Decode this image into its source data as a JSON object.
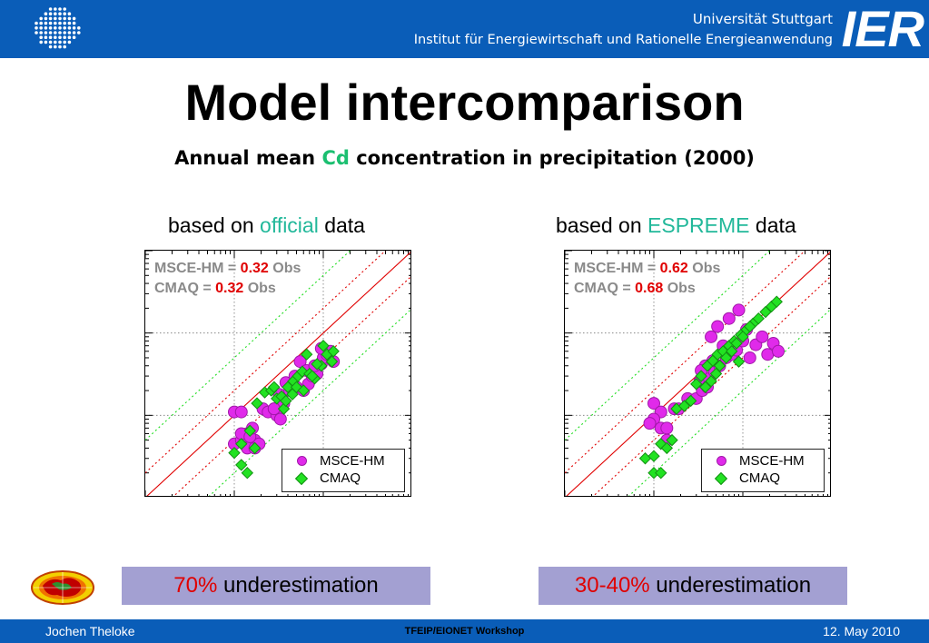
{
  "header": {
    "university": "Universität Stuttgart",
    "institute": "Institut für Energiewirtschaft und Rationelle Energieanwendung",
    "logo_text": "IER",
    "colors": {
      "bar": "#0a5db8"
    }
  },
  "slide": {
    "title": "Model intercomparison",
    "subtitle": {
      "pre": "Annual mean ",
      "highlight": "Cd",
      "post": " concentration in precipitation (2000)"
    }
  },
  "panels": [
    {
      "label": {
        "pre": "based on ",
        "highlight": "official",
        "post": " data"
      },
      "stats": [
        {
          "name": "MSCE-HM = ",
          "value": "0.32",
          "suffix": " Obs"
        },
        {
          "name": "CMAQ = ",
          "value": "0.32",
          "suffix": " Obs"
        }
      ],
      "conclusion": {
        "highlight": "70%",
        "text": " underestimation"
      }
    },
    {
      "label": {
        "pre": "based on ",
        "highlight": "ESPREME",
        "post": " data"
      },
      "stats": [
        {
          "name": "MSCE-HM = ",
          "value": "0.62",
          "suffix": " Obs"
        },
        {
          "name": "CMAQ = ",
          "value": "0.68",
          "suffix": " Obs"
        }
      ],
      "conclusion": {
        "highlight": "30-40%",
        "text": " underestimation"
      }
    }
  ],
  "legend": {
    "msce": "MSCE-HM",
    "cmaq": "CMAQ"
  },
  "footer": {
    "author": "Jochen Theloke",
    "event": "TFEIP/EIONET Workshop",
    "date": "12. May 2010"
  },
  "chart_data": [
    {
      "type": "scatter",
      "title": "",
      "xlabel": "",
      "ylabel": "",
      "scale": "log-log",
      "grid": true,
      "legend_position": "bottom-right",
      "xlim": [
        0.01,
        10
      ],
      "ylim": [
        0.01,
        10
      ],
      "reference_lines": [
        {
          "kind": "1:1",
          "color": "#e00000",
          "style": "solid"
        },
        {
          "kind": "factor 2",
          "color": "#e00000",
          "style": "dotted"
        },
        {
          "kind": "factor 5",
          "color": "#22dd22",
          "style": "dotted"
        }
      ],
      "series": [
        {
          "name": "MSCE-HM",
          "color": "#e02aea",
          "marker": "circle",
          "x": [
            0.1,
            0.12,
            0.14,
            0.17,
            0.1,
            0.12,
            0.14,
            0.17,
            0.19,
            0.12,
            0.15,
            0.16,
            0.21,
            0.24,
            0.28,
            0.32,
            0.36,
            0.3,
            0.42,
            0.33,
            0.45,
            0.5,
            0.6,
            0.68,
            0.75,
            0.85,
            0.95,
            0.55,
            0.65,
            0.8,
            1.0,
            1.1,
            1.2,
            1.3,
            0.95,
            0.28,
            0.38,
            0.48
          ],
          "y": [
            0.11,
            0.11,
            0.06,
            0.05,
            0.045,
            0.05,
            0.04,
            0.04,
            0.045,
            0.06,
            0.055,
            0.07,
            0.12,
            0.11,
            0.12,
            0.18,
            0.14,
            0.1,
            0.2,
            0.09,
            0.24,
            0.22,
            0.2,
            0.24,
            0.3,
            0.32,
            0.42,
            0.45,
            0.35,
            0.4,
            0.5,
            0.55,
            0.6,
            0.45,
            0.65,
            0.12,
            0.25,
            0.3
          ]
        },
        {
          "name": "CMAQ",
          "color": "#22e222",
          "marker": "diamond",
          "x": [
            0.1,
            0.12,
            0.14,
            0.17,
            0.12,
            0.15,
            0.18,
            0.22,
            0.26,
            0.3,
            0.36,
            0.34,
            0.4,
            0.46,
            0.52,
            0.58,
            0.7,
            0.8,
            0.95,
            1.1,
            1.3,
            0.65,
            0.75,
            0.85,
            1.0,
            1.25,
            0.45,
            0.5,
            0.38,
            0.28,
            0.6
          ],
          "y": [
            0.035,
            0.025,
            0.02,
            0.04,
            0.045,
            0.065,
            0.14,
            0.19,
            0.2,
            0.16,
            0.12,
            0.17,
            0.22,
            0.26,
            0.3,
            0.34,
            0.32,
            0.28,
            0.4,
            0.55,
            0.6,
            0.55,
            0.3,
            0.42,
            0.7,
            0.45,
            0.18,
            0.22,
            0.15,
            0.22,
            0.2
          ]
        }
      ]
    },
    {
      "type": "scatter",
      "title": "",
      "xlabel": "",
      "ylabel": "",
      "scale": "log-log",
      "grid": true,
      "legend_position": "bottom-right",
      "xlim": [
        0.01,
        10
      ],
      "ylim": [
        0.01,
        10
      ],
      "reference_lines": [
        {
          "kind": "1:1",
          "color": "#e00000",
          "style": "solid"
        },
        {
          "kind": "factor 2",
          "color": "#e00000",
          "style": "dotted"
        },
        {
          "kind": "factor 5",
          "color": "#22dd22",
          "style": "dotted"
        }
      ],
      "series": [
        {
          "name": "MSCE-HM",
          "color": "#e02aea",
          "marker": "circle",
          "x": [
            0.1,
            0.12,
            0.1,
            0.12,
            0.14,
            0.14,
            0.09,
            0.17,
            0.19,
            0.24,
            0.3,
            0.35,
            0.33,
            0.42,
            0.48,
            0.4,
            0.55,
            0.65,
            0.75,
            0.6,
            0.85,
            1.0,
            1.2,
            1.4,
            1.65,
            1.9,
            2.2,
            2.5,
            0.38,
            0.44,
            0.52,
            0.7,
            0.9,
            1.1,
            0.34,
            0.46
          ],
          "y": [
            0.14,
            0.11,
            0.09,
            0.07,
            0.07,
            0.05,
            0.08,
            0.12,
            0.12,
            0.16,
            0.16,
            0.2,
            0.26,
            0.28,
            0.34,
            0.22,
            0.4,
            0.5,
            0.55,
            0.7,
            0.62,
            0.8,
            0.5,
            0.72,
            0.9,
            0.55,
            0.75,
            0.6,
            0.4,
            0.9,
            1.2,
            1.5,
            1.9,
            1.1,
            0.35,
            0.46
          ]
        },
        {
          "name": "CMAQ",
          "color": "#22e222",
          "marker": "diamond",
          "x": [
            0.08,
            0.1,
            0.12,
            0.14,
            0.16,
            0.1,
            0.12,
            0.18,
            0.22,
            0.26,
            0.3,
            0.34,
            0.4,
            0.46,
            0.52,
            0.6,
            0.7,
            0.8,
            0.95,
            1.1,
            1.3,
            1.5,
            1.8,
            2.1,
            2.4,
            0.55,
            0.65,
            0.75,
            0.85,
            1.0,
            1.2,
            0.38,
            0.44,
            0.5,
            0.9
          ],
          "y": [
            0.03,
            0.032,
            0.045,
            0.04,
            0.05,
            0.02,
            0.02,
            0.12,
            0.13,
            0.15,
            0.24,
            0.3,
            0.4,
            0.46,
            0.55,
            0.6,
            0.7,
            0.8,
            0.95,
            1.1,
            1.3,
            1.5,
            1.8,
            2.1,
            2.4,
            0.4,
            0.5,
            0.6,
            0.75,
            0.9,
            1.2,
            0.22,
            0.26,
            0.32,
            0.45
          ]
        }
      ]
    }
  ]
}
